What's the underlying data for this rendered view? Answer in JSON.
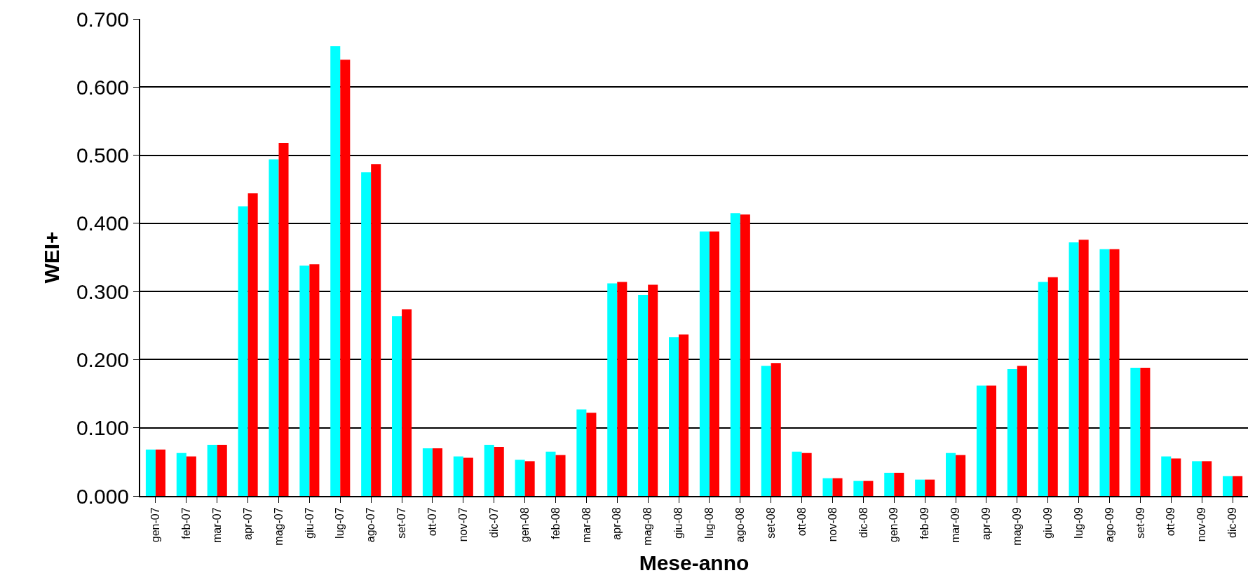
{
  "chart_data": {
    "type": "bar",
    "xlabel": "Mese-anno",
    "ylabel": "WEI+",
    "categories": [
      "gen-07",
      "feb-07",
      "mar-07",
      "apr-07",
      "mag-07",
      "giu-07",
      "lug-07",
      "ago-07",
      "set-07",
      "ott-07",
      "nov-07",
      "dic-07",
      "gen-08",
      "feb-08",
      "mar-08",
      "apr-08",
      "mag-08",
      "giu-08",
      "lug-08",
      "ago-08",
      "set-08",
      "ott-08",
      "nov-08",
      "dic-08",
      "gen-09",
      "feb-09",
      "mar-09",
      "apr-09",
      "mag-09",
      "giu-09",
      "lug-09",
      "ago-09",
      "set-09",
      "ott-09",
      "nov-09",
      "dic-09"
    ],
    "series": [
      {
        "color": "#00ffff",
        "values": [
          0.068,
          0.063,
          0.075,
          0.425,
          0.494,
          0.338,
          0.66,
          0.475,
          0.264,
          0.07,
          0.058,
          0.075,
          0.053,
          0.065,
          0.127,
          0.312,
          0.295,
          0.233,
          0.388,
          0.415,
          0.191,
          0.065,
          0.026,
          0.022,
          0.034,
          0.024,
          0.063,
          0.162,
          0.186,
          0.314,
          0.372,
          0.362,
          0.188,
          0.058,
          0.051,
          0.029
        ]
      },
      {
        "color": "#ff0000",
        "values": [
          0.068,
          0.058,
          0.075,
          0.444,
          0.518,
          0.34,
          0.64,
          0.487,
          0.274,
          0.07,
          0.056,
          0.072,
          0.051,
          0.06,
          0.122,
          0.314,
          0.31,
          0.237,
          0.388,
          0.413,
          0.195,
          0.063,
          0.026,
          0.022,
          0.034,
          0.024,
          0.06,
          0.162,
          0.191,
          0.321,
          0.376,
          0.362,
          0.188,
          0.055,
          0.051,
          0.029
        ]
      }
    ],
    "ylim": [
      0,
      0.7
    ],
    "yticks": [
      {
        "value": 0,
        "label": "0.000"
      },
      {
        "value": 0.1,
        "label": "0.100"
      },
      {
        "value": 0.2,
        "label": "0.200"
      },
      {
        "value": 0.3,
        "label": "0.300"
      },
      {
        "value": 0.4,
        "label": "0.400"
      },
      {
        "value": 0.5,
        "label": "0.500"
      },
      {
        "value": 0.6,
        "label": "0.600"
      },
      {
        "value": 0.7,
        "label": "0.700"
      }
    ],
    "grid": "y"
  }
}
